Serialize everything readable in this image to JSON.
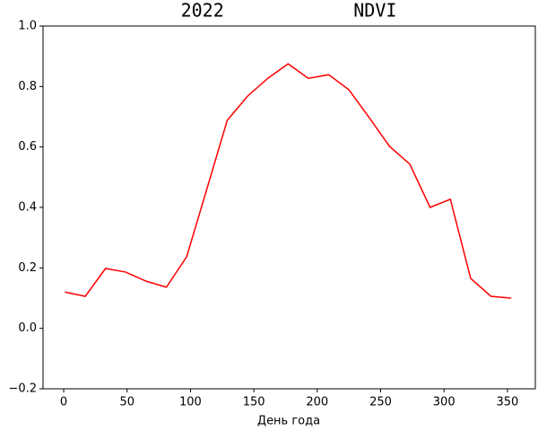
{
  "chart_data": {
    "type": "line",
    "title": "2022            NDVI",
    "x_label": "День года",
    "x": [
      1,
      17,
      33,
      49,
      65,
      81,
      97,
      113,
      129,
      145,
      161,
      177,
      193,
      209,
      225,
      241,
      257,
      273,
      289,
      305,
      321,
      337,
      353
    ],
    "series": [
      {
        "name": "NDVI",
        "color": "#ff0000",
        "values": [
          0.12,
          0.106,
          0.198,
          0.186,
          0.156,
          0.136,
          0.237,
          0.462,
          0.688,
          0.768,
          0.827,
          0.875,
          0.827,
          0.839,
          0.789,
          0.697,
          0.602,
          0.543,
          0.4,
          0.427,
          0.165,
          0.106,
          0.1
        ]
      }
    ],
    "xlim": [
      -16.3,
      372
    ],
    "ylim": [
      -0.2,
      1.0
    ],
    "xticks": [
      0,
      50,
      100,
      150,
      200,
      250,
      300,
      350
    ],
    "yticks": [
      {
        "value": -0.2,
        "label": "−0.2"
      },
      {
        "value": 0,
        "label": "0.0"
      },
      {
        "value": 0.2,
        "label": "0.2"
      },
      {
        "value": 0.4,
        "label": "0.4"
      },
      {
        "value": 0.6,
        "label": "0.6"
      },
      {
        "value": 0.8,
        "label": "0.8"
      },
      {
        "value": 1.0,
        "label": "1.0"
      }
    ],
    "grid": false
  }
}
